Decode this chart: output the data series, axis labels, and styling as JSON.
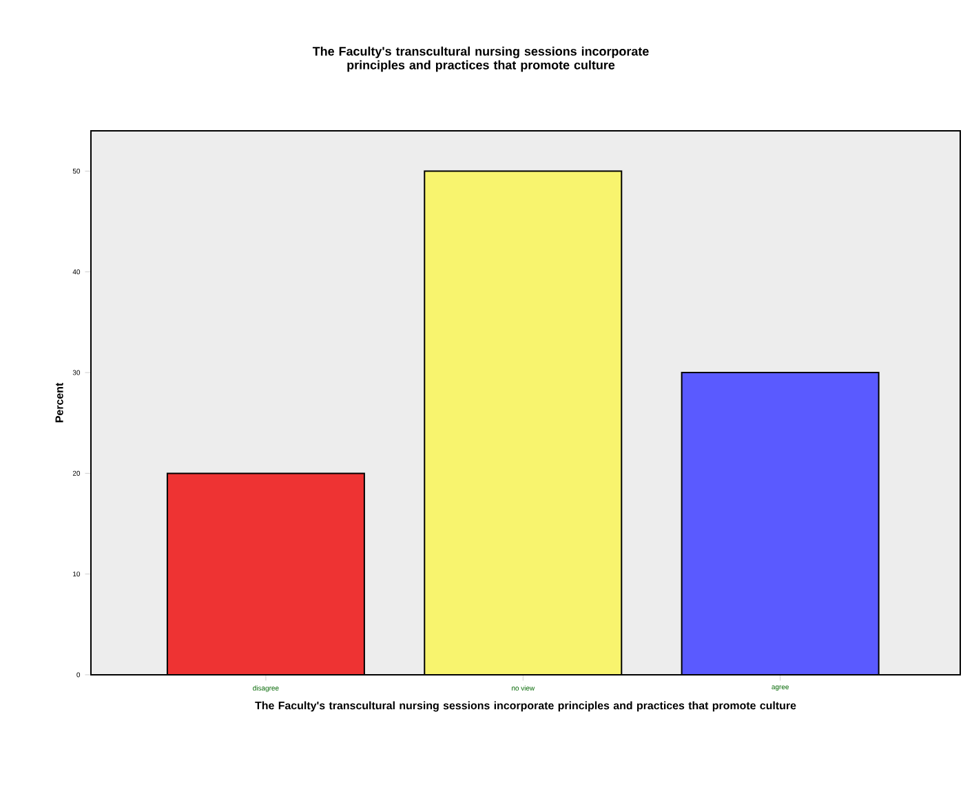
{
  "chart_data": {
    "type": "bar",
    "title": "The Faculty's transcultural nursing sessions incorporate principles and practices that promote culture",
    "xlabel": "The Faculty's transcultural nursing sessions incorporate principles and practices that promote culture",
    "ylabel": "Percent",
    "categories": [
      "disagree",
      "no view",
      "agree"
    ],
    "values": [
      20,
      50,
      30
    ],
    "colors": [
      "#ee3333",
      "#f8f46e",
      "#5a5aff"
    ],
    "ylim": [
      0,
      54
    ],
    "yticks": [
      0,
      10,
      20,
      30,
      40,
      50
    ],
    "grid": false
  }
}
